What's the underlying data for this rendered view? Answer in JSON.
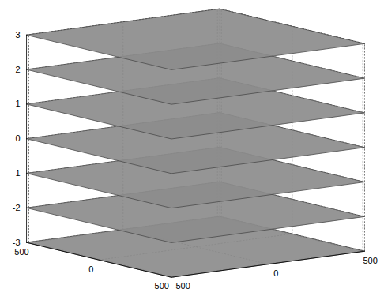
{
  "chart_data": {
    "type": "slice",
    "z_levels": [
      -3,
      -2,
      -1,
      0,
      1,
      2,
      3
    ],
    "color": "#8c8c8c",
    "xlim": [
      -512,
      512
    ],
    "xticks": [
      -500,
      0,
      500
    ],
    "ylim": [
      -512,
      512
    ],
    "yticks": [
      -500,
      0,
      500
    ],
    "zlim": [
      -3,
      3
    ],
    "zticks": [
      -3,
      -2,
      -1,
      0,
      1,
      2,
      3
    ],
    "grid": true
  }
}
